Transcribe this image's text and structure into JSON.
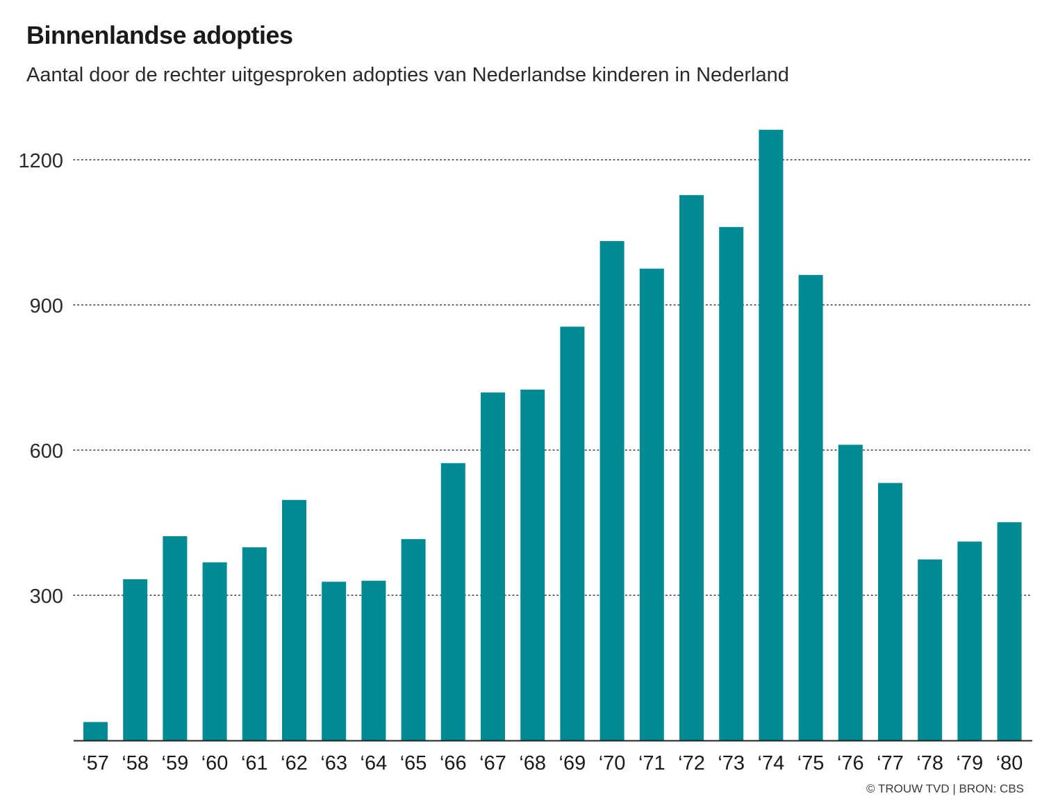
{
  "title": "Binnenlandse adopties",
  "subtitle": "Aantal door de rechter uitgesproken adopties van Nederlandse kinderen in Nederland",
  "source": "© TROUW TVD | BRON: CBS",
  "colors": {
    "bar": "#008A94",
    "grid": "#333333",
    "axis": "#222222"
  },
  "chart_data": {
    "type": "bar",
    "categories": [
      "‘57",
      "‘58",
      "‘59",
      "‘60",
      "‘61",
      "‘62",
      "‘63",
      "‘64",
      "‘65",
      "‘66",
      "‘67",
      "‘68",
      "‘69",
      "‘70",
      "‘71",
      "‘72",
      "‘73",
      "‘74",
      "‘75",
      "‘76",
      "‘77",
      "‘78",
      "‘79",
      "‘80"
    ],
    "values": [
      38,
      333,
      422,
      368,
      399,
      497,
      328,
      330,
      416,
      573,
      719,
      725,
      855,
      1032,
      975,
      1127,
      1061,
      1262,
      962,
      611,
      532,
      374,
      411,
      451
    ],
    "yticks": [
      300,
      600,
      900,
      1200
    ],
    "ylim": [
      0,
      1290
    ],
    "grid": "dotted-horizontal"
  }
}
